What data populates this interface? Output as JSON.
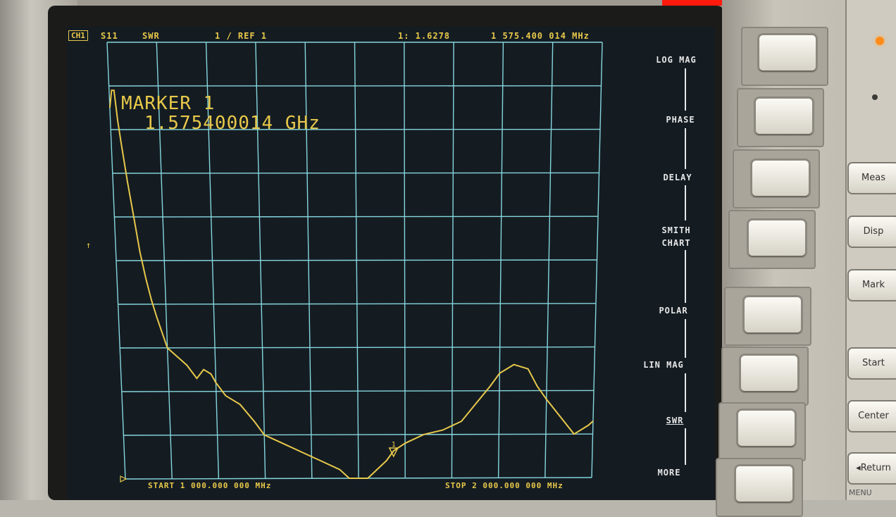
{
  "header": {
    "channel": "CH1",
    "parameter": "S11",
    "format": "SWR",
    "scale": "1 / REF 1",
    "marker_value": "1: 1.6278",
    "marker_frequency": "1 575.400 014 MHz"
  },
  "marker": {
    "title": "MARKER 1",
    "frequency": "1.575400014 GHz",
    "number": "1"
  },
  "footer": {
    "start": "START 1 000.000 000 MHz",
    "stop": "STOP 2 000.000 000 MHz"
  },
  "reference_arrow": "↑",
  "softkeys": [
    {
      "label": "LOG MAG",
      "selected": false
    },
    {
      "label": "PHASE",
      "selected": false
    },
    {
      "label": "DELAY",
      "selected": false
    },
    {
      "label": "SMITH CHART",
      "selected": false
    },
    {
      "label": "POLAR",
      "selected": false
    },
    {
      "label": "LIN MAG",
      "selected": false
    },
    {
      "label": "SWR",
      "selected": true
    },
    {
      "label": "MORE",
      "selected": false
    }
  ],
  "front_panel": {
    "menu_keys": [
      "Meas",
      "Disp",
      "Mark"
    ],
    "entry_keys": [
      "Start",
      "Center",
      "Return"
    ],
    "menu_caption": "MENU"
  },
  "colors": {
    "trace": "#e8c84a",
    "grid": "#86d6dd",
    "screen_bg": "#141c22",
    "annotation": "#e8c84a",
    "softkey_text": "#e6e6e6"
  },
  "chart_data": {
    "type": "line",
    "title": "",
    "xlabel": "",
    "ylabel": "",
    "x_unit": "MHz",
    "xlim": [
      1000,
      2000
    ],
    "ylim": [
      1,
      11
    ],
    "grid": true,
    "series": [
      {
        "x": [
          1000,
          1005,
          1010,
          1015,
          1020,
          1030,
          1040,
          1050,
          1060,
          1070,
          1080,
          1100,
          1120,
          1140,
          1160,
          1175,
          1190,
          1200,
          1220,
          1250,
          1280,
          1300,
          1340,
          1380,
          1420,
          1460,
          1480,
          1500,
          1520,
          1540,
          1560,
          1575.4,
          1600,
          1640,
          1680,
          1720,
          1750,
          1780,
          1800,
          1830,
          1860,
          1880,
          1900,
          1930,
          1960,
          1990,
          2000
        ],
        "values": [
          9.5,
          9.9,
          9.9,
          9.2,
          8.7,
          7.8,
          7.0,
          6.2,
          5.6,
          5.1,
          4.7,
          4.0,
          3.8,
          3.6,
          3.3,
          3.5,
          3.4,
          3.2,
          2.9,
          2.7,
          2.3,
          2.0,
          1.8,
          1.6,
          1.4,
          1.2,
          1.0,
          0.9,
          1.0,
          1.2,
          1.4,
          1.6278,
          1.8,
          2.0,
          2.1,
          2.3,
          2.7,
          3.1,
          3.4,
          3.6,
          3.5,
          3.1,
          2.8,
          2.4,
          2.0,
          2.2,
          2.3
        ]
      }
    ],
    "marker_x": 1575.4,
    "marker_y": 1.6278
  }
}
